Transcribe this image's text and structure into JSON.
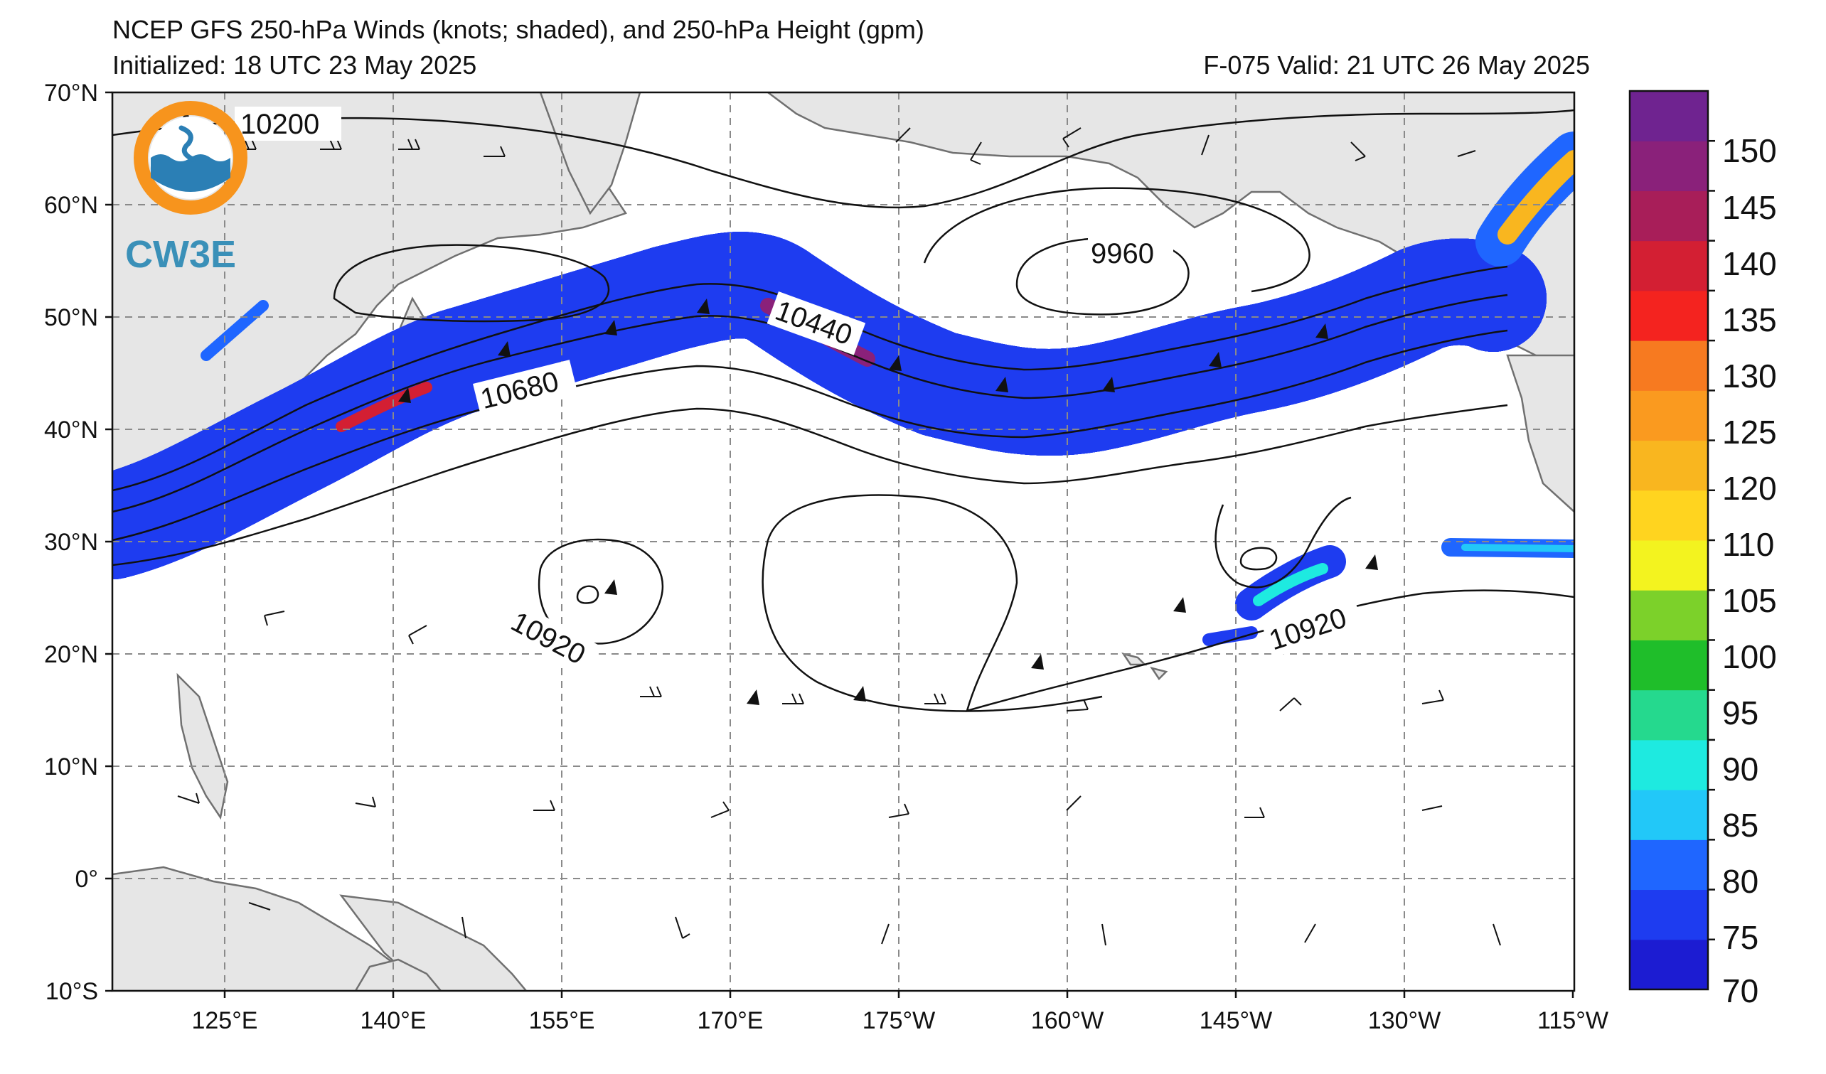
{
  "header": {
    "title": "NCEP GFS 250-hPa Winds (knots; shaded), and 250-hPa Height (gpm)",
    "init": "Initialized: 18 UTC 23 May 2025",
    "valid": "F-075  Valid: 21 UTC 26 May 2025"
  },
  "logo": {
    "text": "CW3E",
    "colors": {
      "ring": "#f7941d",
      "wave": "#2b7fb5"
    }
  },
  "map": {
    "lat_labels": [
      "70°N",
      "60°N",
      "50°N",
      "40°N",
      "30°N",
      "20°N",
      "10°N",
      "0°",
      "10°S"
    ],
    "lon_labels": [
      "125°E",
      "140°E",
      "155°E",
      "170°E",
      "175°W",
      "160°W",
      "145°W",
      "130°W",
      "115°W"
    ],
    "lat_range": [
      -10,
      70
    ],
    "lon_range": [
      110,
      245
    ],
    "land_color": "#e6e6e6",
    "coast_color": "#707070",
    "grid": "dashed"
  },
  "contours": {
    "labels": [
      "10200",
      "9960",
      "10440",
      "10680",
      "10920",
      "10920"
    ],
    "units": "gpm"
  },
  "colorbar": {
    "ticks": [
      "150",
      "145",
      "140",
      "135",
      "130",
      "125",
      "120",
      "110",
      "105",
      "100",
      "95",
      "90",
      "85",
      "80",
      "75",
      "70"
    ],
    "bins": [
      {
        "value": 70,
        "color": "#1c1cd2"
      },
      {
        "value": 75,
        "color": "#1e3cf0"
      },
      {
        "value": 80,
        "color": "#1f66ff"
      },
      {
        "value": 85,
        "color": "#22c8f8"
      },
      {
        "value": 90,
        "color": "#1eeae0"
      },
      {
        "value": 95,
        "color": "#25d98e"
      },
      {
        "value": 100,
        "color": "#1fbe2a"
      },
      {
        "value": 105,
        "color": "#7cd12a"
      },
      {
        "value": 110,
        "color": "#f3f31f"
      },
      {
        "value": 115,
        "color": "#ffd41f"
      },
      {
        "value": 120,
        "color": "#f9b61f"
      },
      {
        "value": 125,
        "color": "#fa9a1f"
      },
      {
        "value": 130,
        "color": "#f77a20"
      },
      {
        "value": 135,
        "color": "#f4231f"
      },
      {
        "value": 140,
        "color": "#d31f33"
      },
      {
        "value": 145,
        "color": "#a81e59"
      },
      {
        "value": 150,
        "color": "#8a217a"
      },
      {
        "value": 155,
        "color": "#6f2390"
      }
    ]
  }
}
